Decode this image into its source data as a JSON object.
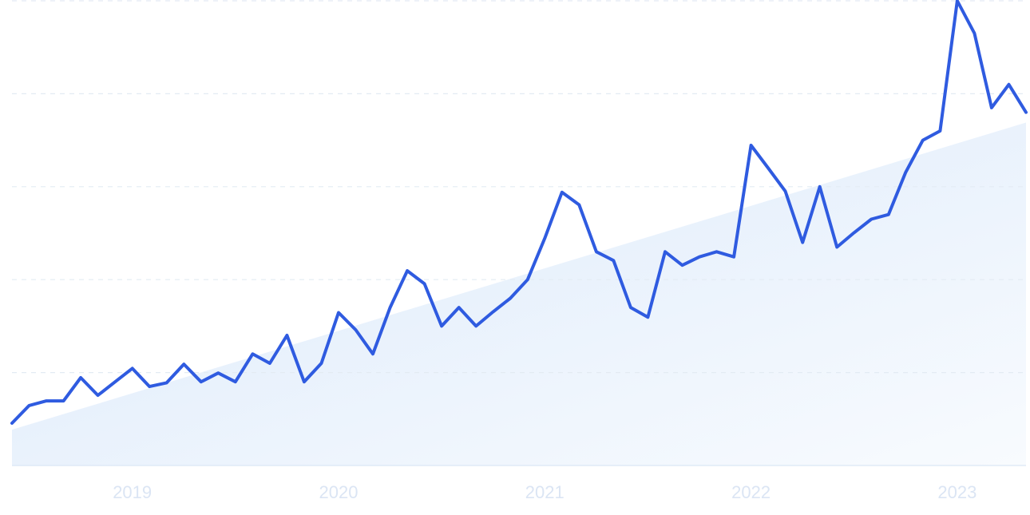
{
  "chart_data": {
    "type": "line",
    "categories": [
      null,
      null,
      null,
      null,
      null,
      null,
      null,
      "2019",
      null,
      null,
      null,
      null,
      null,
      null,
      null,
      null,
      null,
      null,
      null,
      "2020",
      null,
      null,
      null,
      null,
      null,
      null,
      null,
      null,
      null,
      null,
      null,
      "2021",
      null,
      null,
      null,
      null,
      null,
      null,
      null,
      null,
      null,
      null,
      null,
      "2022",
      null,
      null,
      null,
      null,
      null,
      null,
      null,
      null,
      null,
      null,
      null,
      "2023",
      null,
      null,
      null,
      null
    ],
    "values": [
      9.1,
      12.9,
      13.9,
      13.9,
      18.9,
      15.1,
      18.0,
      20.9,
      17.0,
      17.8,
      21.8,
      18.0,
      19.9,
      18.0,
      24.0,
      22.0,
      28.0,
      18.0,
      22.0,
      32.9,
      29.2,
      24.0,
      34.0,
      41.9,
      39.1,
      30.0,
      34.0,
      30.0,
      33.1,
      36.0,
      40.0,
      48.9,
      58.8,
      56.1,
      46.0,
      44.1,
      34.0,
      31.9,
      46.0,
      43.1,
      44.9,
      46.0,
      44.9,
      68.9,
      64.0,
      59.0,
      48.0,
      60.0,
      47.0,
      50.1,
      53.0,
      54.0,
      63.1,
      70.0,
      72.0,
      100,
      93.0,
      77.0,
      82.0,
      76.0
    ],
    "color": "#2f5be0",
    "trend_values": [
      7.7,
      73.8
    ],
    "trend_color": "#e2eefb",
    "ylim": [
      0,
      100
    ],
    "yticks": [
      0,
      20,
      40,
      60,
      80,
      100
    ],
    "grid": true
  }
}
